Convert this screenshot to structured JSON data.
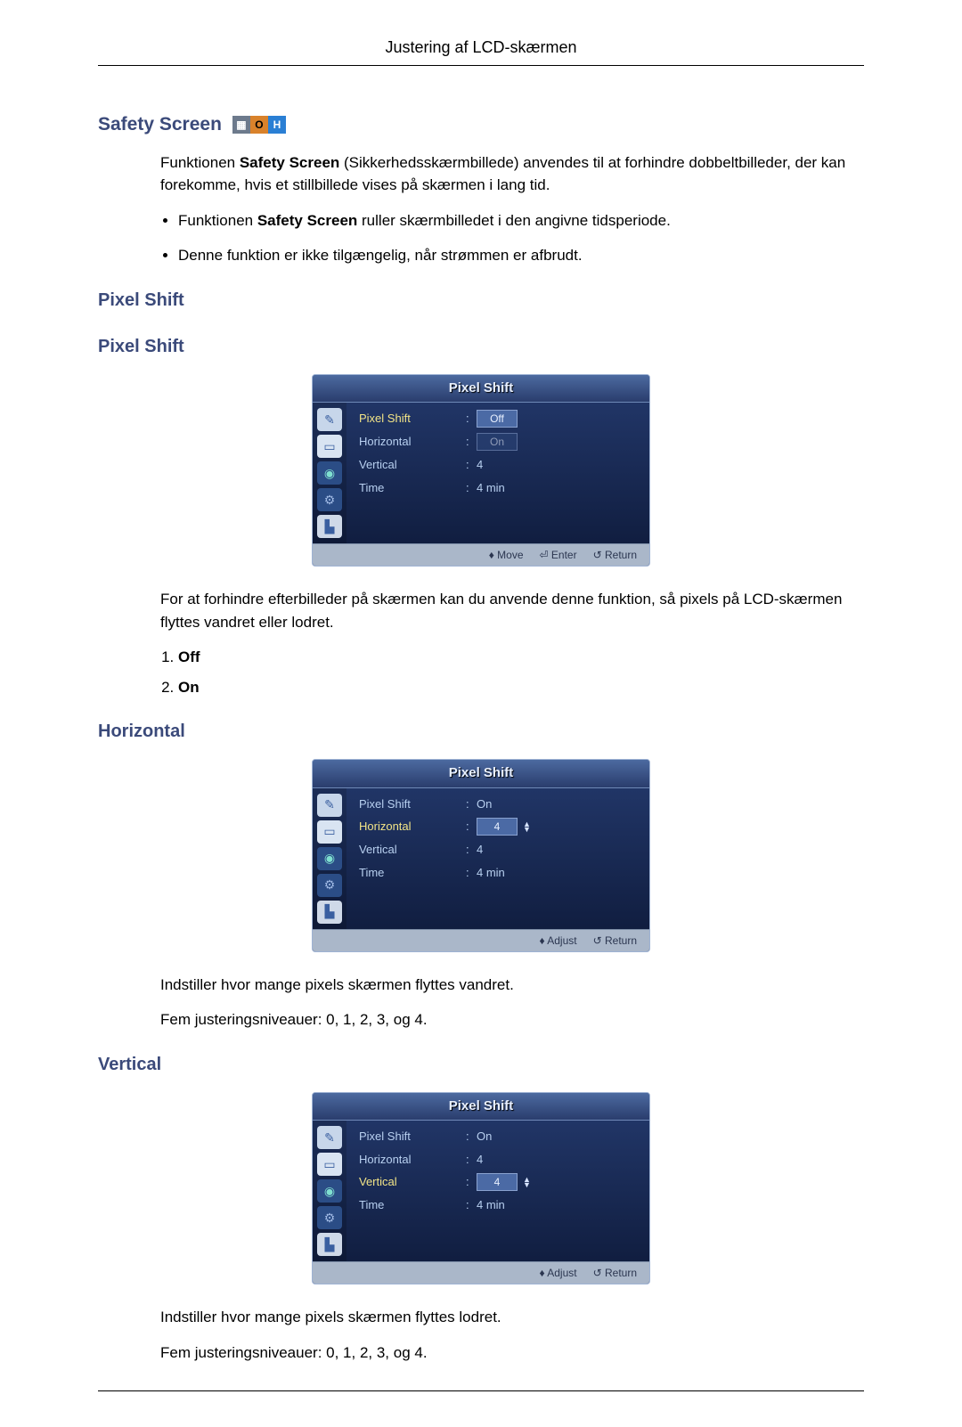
{
  "page_header": "Justering af LCD-skærmen",
  "safety_screen": {
    "heading": "Safety Screen",
    "badge": {
      "squares": [
        {
          "bg": "#6d7a8c",
          "fg": "#ffffff",
          "glyph": "▦"
        },
        {
          "bg": "#d9822b",
          "fg": "#000000",
          "glyph": "O"
        },
        {
          "bg": "#2a7fd4",
          "fg": "#ffffff",
          "glyph": "H"
        }
      ]
    },
    "intro_before_strong": "Funktionen ",
    "intro_strong": "Safety Screen",
    "intro_after_strong": " (Sikkerhedsskærmbillede) anvendes til at forhindre dobbeltbilleder, der kan forekomme, hvis et stillbillede vises på skærmen i lang tid.",
    "bullets": [
      {
        "before": "Funktionen ",
        "strong": "Safety Screen",
        "after": " ruller skærmbilledet i den angivne tidsperiode."
      },
      {
        "before": "",
        "strong": "",
        "after": "Denne funktion er ikke tilgængelig, når strømmen er afbrudt."
      }
    ]
  },
  "pixel_shift": {
    "heading1": "Pixel Shift",
    "heading2": "Pixel Shift",
    "paragraph": "For at forhindre efterbilleder på skærmen kan du anvende denne funktion, så pixels på LCD-skærmen flyttes vandret eller lodret.",
    "options": [
      "Off",
      "On"
    ],
    "osd": {
      "title": "Pixel Shift",
      "rows": [
        {
          "label": "Pixel Shift",
          "value": "Off",
          "hl": true,
          "box": true,
          "arrows": false
        },
        {
          "label": "Horizontal",
          "value": "On",
          "hl": false,
          "box": true,
          "arrows": false,
          "dim": true
        },
        {
          "label": "Vertical",
          "value": "4",
          "hl": false,
          "box": false,
          "arrows": false
        },
        {
          "label": "Time",
          "value": "4 min",
          "hl": false,
          "box": false,
          "arrows": false
        }
      ],
      "footer": [
        "♦ Move",
        "⏎ Enter",
        "↺ Return"
      ]
    }
  },
  "horizontal": {
    "heading": "Horizontal",
    "paragraph1": "Indstiller hvor mange pixels skærmen flyttes vandret.",
    "paragraph2": "Fem justeringsniveauer: 0, 1, 2, 3, og 4.",
    "osd": {
      "title": "Pixel Shift",
      "rows": [
        {
          "label": "Pixel Shift",
          "value": "On",
          "hl": false,
          "box": false,
          "arrows": false
        },
        {
          "label": "Horizontal",
          "value": "4",
          "hl": true,
          "box": true,
          "arrows": true
        },
        {
          "label": "Vertical",
          "value": "4",
          "hl": false,
          "box": false,
          "arrows": false
        },
        {
          "label": "Time",
          "value": "4 min",
          "hl": false,
          "box": false,
          "arrows": false
        }
      ],
      "footer": [
        "♦ Adjust",
        "↺ Return"
      ]
    }
  },
  "vertical": {
    "heading": "Vertical",
    "paragraph1": "Indstiller hvor mange pixels skærmen flyttes lodret.",
    "paragraph2": "Fem justeringsniveauer: 0, 1, 2, 3, og 4.",
    "osd": {
      "title": "Pixel Shift",
      "rows": [
        {
          "label": "Pixel Shift",
          "value": "On",
          "hl": false,
          "box": false,
          "arrows": false
        },
        {
          "label": "Horizontal",
          "value": "4",
          "hl": false,
          "box": false,
          "arrows": false
        },
        {
          "label": "Vertical",
          "value": "4",
          "hl": true,
          "box": true,
          "arrows": true
        },
        {
          "label": "Time",
          "value": "4 min",
          "hl": false,
          "box": false,
          "arrows": false
        }
      ],
      "footer": [
        "♦ Adjust",
        "↺ Return"
      ]
    }
  },
  "osd_icons": [
    {
      "bg": "#c7d6ea",
      "fg": "#3a5fa0",
      "glyph": "✎"
    },
    {
      "bg": "#d9e4f2",
      "fg": "#3a5fa0",
      "glyph": "▭"
    },
    {
      "bg": "#2b4d86",
      "fg": "#7fe0d0",
      "glyph": "◉"
    },
    {
      "bg": "#2b4d86",
      "fg": "#9fb9e4",
      "glyph": "⚙"
    },
    {
      "bg": "#cfd9e8",
      "fg": "#3a5fa0",
      "glyph": "▙"
    }
  ],
  "colors": {
    "heading": "#3b4a7a",
    "body_text": "#000000",
    "osd_label_hl": "#f2e487",
    "osd_label": "#b8d0f0",
    "osd_value": "#b8d0f0"
  }
}
